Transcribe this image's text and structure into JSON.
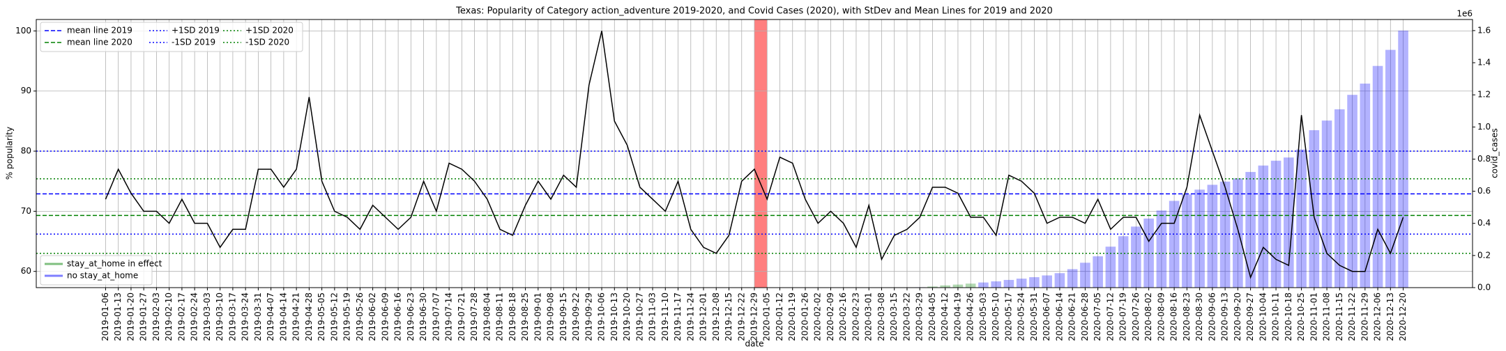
{
  "chart_data": {
    "type": "line",
    "title": "Texas: Popularity of Category action_adventure 2019-2020, and Covid Cases (2020), with StDev and Mean Lines for 2019 and 2020",
    "xlabel": "date",
    "ylabel": "% popularity",
    "y2label": "covid_cases",
    "y2_offset_label": "1e6",
    "grid": true,
    "categories": [
      "2019-01-06",
      "2019-01-13",
      "2019-01-20",
      "2019-01-27",
      "2019-02-03",
      "2019-02-10",
      "2019-02-17",
      "2019-02-24",
      "2019-03-03",
      "2019-03-10",
      "2019-03-17",
      "2019-03-24",
      "2019-03-31",
      "2019-04-07",
      "2019-04-14",
      "2019-04-21",
      "2019-04-28",
      "2019-05-05",
      "2019-05-12",
      "2019-05-19",
      "2019-05-26",
      "2019-06-02",
      "2019-06-09",
      "2019-06-16",
      "2019-06-23",
      "2019-06-30",
      "2019-07-07",
      "2019-07-14",
      "2019-07-21",
      "2019-07-28",
      "2019-08-04",
      "2019-08-11",
      "2019-08-18",
      "2019-08-25",
      "2019-09-01",
      "2019-09-08",
      "2019-09-15",
      "2019-09-22",
      "2019-09-29",
      "2019-10-06",
      "2019-10-13",
      "2019-10-20",
      "2019-10-27",
      "2019-11-03",
      "2019-11-10",
      "2019-11-17",
      "2019-11-24",
      "2019-12-01",
      "2019-12-08",
      "2019-12-15",
      "2019-12-22",
      "2019-12-29",
      "2020-01-05",
      "2020-01-12",
      "2020-01-19",
      "2020-01-26",
      "2020-02-02",
      "2020-02-09",
      "2020-02-16",
      "2020-02-23",
      "2020-03-01",
      "2020-03-08",
      "2020-03-15",
      "2020-03-22",
      "2020-03-29",
      "2020-04-05",
      "2020-04-12",
      "2020-04-19",
      "2020-04-26",
      "2020-05-03",
      "2020-05-10",
      "2020-05-17",
      "2020-05-24",
      "2020-05-31",
      "2020-06-07",
      "2020-06-14",
      "2020-06-21",
      "2020-06-28",
      "2020-07-05",
      "2020-07-12",
      "2020-07-19",
      "2020-07-26",
      "2020-08-02",
      "2020-08-09",
      "2020-08-16",
      "2020-08-23",
      "2020-08-30",
      "2020-09-06",
      "2020-09-13",
      "2020-09-20",
      "2020-09-27",
      "2020-10-04",
      "2020-10-11",
      "2020-10-18",
      "2020-10-25",
      "2020-11-01",
      "2020-11-08",
      "2020-11-15",
      "2020-11-22",
      "2020-11-29",
      "2020-12-06",
      "2020-12-13",
      "2020-12-20"
    ],
    "series": [
      {
        "type": "line",
        "color": "#000000",
        "values": [
          72,
          77,
          73,
          70,
          70,
          68,
          72,
          68,
          68,
          64,
          67,
          67,
          77,
          77,
          74,
          77,
          89,
          75,
          70,
          69,
          67,
          71,
          69,
          67,
          69,
          75,
          70,
          78,
          77,
          75,
          72,
          67,
          66,
          71,
          75,
          72,
          76,
          74,
          91,
          100,
          85,
          81,
          74,
          72,
          70,
          75,
          67,
          64,
          63,
          66,
          75,
          77,
          72,
          79,
          78,
          72,
          68,
          70,
          68,
          64,
          71,
          62,
          66,
          67,
          69,
          74,
          74,
          73,
          69,
          69,
          66,
          76,
          75,
          73,
          68,
          69,
          69,
          68,
          72,
          67,
          69,
          69,
          65,
          68,
          68,
          74,
          86,
          80,
          74,
          67,
          59,
          64,
          62,
          61,
          86,
          69,
          63,
          61,
          60,
          60,
          67,
          63,
          69
        ]
      },
      {
        "type": "bar",
        "axis": "y2",
        "name": "stay_at_home in effect",
        "color": "#008000",
        "values": [
          null,
          null,
          null,
          null,
          null,
          null,
          null,
          null,
          null,
          null,
          null,
          null,
          null,
          null,
          null,
          null,
          null,
          null,
          null,
          null,
          null,
          null,
          null,
          null,
          null,
          null,
          null,
          null,
          null,
          null,
          null,
          null,
          null,
          null,
          null,
          null,
          null,
          null,
          null,
          null,
          null,
          null,
          null,
          null,
          null,
          null,
          null,
          null,
          null,
          null,
          null,
          null,
          null,
          null,
          null,
          null,
          null,
          null,
          null,
          null,
          null,
          null,
          null,
          null,
          null,
          7000,
          14000,
          19000,
          25000,
          null,
          null,
          null,
          null,
          null,
          null,
          null,
          null,
          null,
          null,
          null,
          null,
          null,
          null,
          null,
          null,
          null,
          null,
          null,
          null,
          null,
          null,
          null,
          null,
          null,
          null,
          null,
          null,
          null,
          null,
          null,
          null,
          null,
          null
        ]
      },
      {
        "type": "bar",
        "axis": "y2",
        "name": "no stay_at_home",
        "color": "#0000ff",
        "values": [
          null,
          null,
          null,
          null,
          null,
          null,
          null,
          null,
          null,
          null,
          null,
          null,
          null,
          null,
          null,
          null,
          null,
          null,
          null,
          null,
          null,
          null,
          null,
          null,
          null,
          null,
          null,
          null,
          null,
          null,
          null,
          null,
          null,
          null,
          null,
          null,
          null,
          null,
          null,
          null,
          null,
          null,
          null,
          null,
          null,
          null,
          null,
          null,
          null,
          null,
          null,
          null,
          0,
          0,
          0,
          0,
          0,
          0,
          0,
          0,
          0,
          0,
          50,
          350,
          2500,
          null,
          null,
          null,
          null,
          32000,
          39000,
          48000,
          56000,
          65000,
          76000,
          90000,
          115000,
          155000,
          195000,
          255000,
          320000,
          380000,
          430000,
          480000,
          540000,
          580000,
          610000,
          640000,
          660000,
          680000,
          720000,
          760000,
          790000,
          810000,
          860000,
          980000,
          1040000,
          1110000,
          1200000,
          1270000,
          1380000,
          1480000,
          1600000
        ]
      }
    ],
    "hlines": [
      {
        "name": "mean line 2019",
        "value": 72.9,
        "color": "#0000ff",
        "style": "dashed"
      },
      {
        "name": "mean line 2020",
        "value": 69.3,
        "color": "#008000",
        "style": "dashed"
      },
      {
        "name": "+1SD 2019",
        "value": 80.0,
        "color": "#0000ff",
        "style": "dotted"
      },
      {
        "name": "-1SD 2019",
        "value": 66.2,
        "color": "#0000ff",
        "style": "dotted"
      },
      {
        "name": "+1SD 2020",
        "value": 75.4,
        "color": "#008000",
        "style": "dotted"
      },
      {
        "name": "-1SD 2020",
        "value": 63.0,
        "color": "#008000",
        "style": "dotted"
      }
    ],
    "span": {
      "start": "2019-12-29",
      "end": "2020-01-05",
      "color": "#ff0000"
    },
    "ylim": [
      57.3,
      101.9
    ],
    "yticks": [
      60,
      70,
      80,
      90,
      100
    ],
    "y2lim": [
      0,
      1669000
    ],
    "y2ticks": [
      {
        "value": 0,
        "label": "0.0"
      },
      {
        "value": 200000,
        "label": "0.2"
      },
      {
        "value": 400000,
        "label": "0.4"
      },
      {
        "value": 600000,
        "label": "0.6"
      },
      {
        "value": 800000,
        "label": "0.8"
      },
      {
        "value": 1000000,
        "label": "1.0"
      },
      {
        "value": 1200000,
        "label": "1.2"
      },
      {
        "value": 1400000,
        "label": "1.4"
      },
      {
        "value": 1600000,
        "label": "1.6"
      }
    ]
  }
}
